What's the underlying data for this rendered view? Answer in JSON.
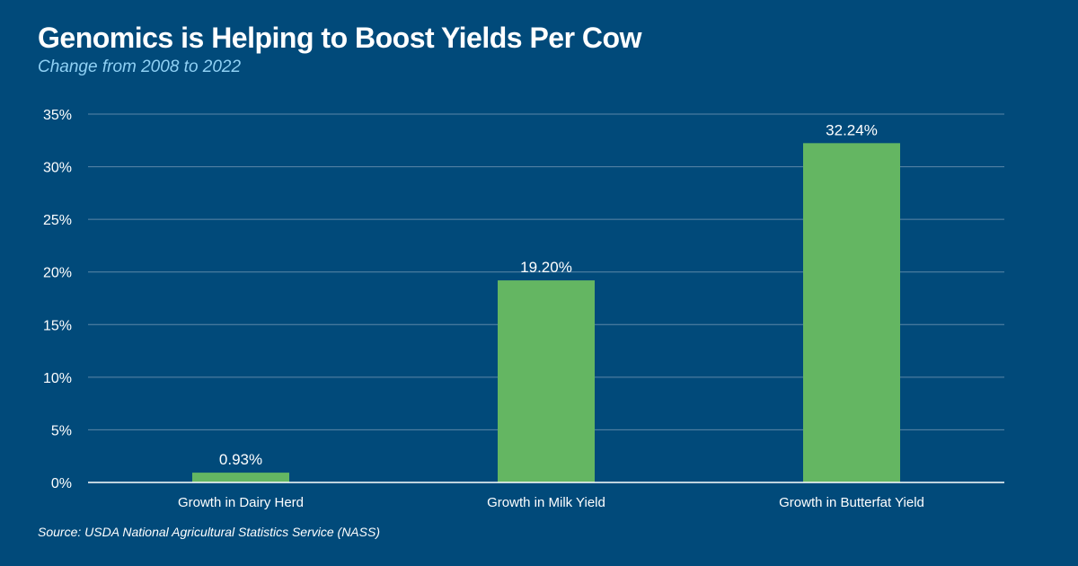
{
  "header": {
    "title": "Genomics is Helping to Boost Yields Per Cow",
    "subtitle": "Change from 2008 to 2022"
  },
  "footer": {
    "source": "Source: USDA National Agricultural Statistics Service (NASS)"
  },
  "colors": {
    "background": "#014a7a",
    "bar": "#64b662",
    "gridline": "#5c87a8",
    "subtitle": "#8fd0f4"
  },
  "chart_data": {
    "type": "bar",
    "title": "Genomics is Helping to Boost Yields Per Cow",
    "subtitle": "Change from 2008 to 2022",
    "categories": [
      "Growth in Dairy Herd",
      "Growth in Milk Yield",
      "Growth in Butterfat Yield"
    ],
    "values": [
      0.93,
      19.2,
      32.24
    ],
    "data_labels": [
      "0.93%",
      "19.20%",
      "32.24%"
    ],
    "xlabel": "",
    "ylabel": "",
    "ylim": [
      0,
      35
    ],
    "yticks": [
      0,
      5,
      10,
      15,
      20,
      25,
      30,
      35
    ],
    "ytick_labels": [
      "0%",
      "5%",
      "10%",
      "15%",
      "20%",
      "25%",
      "30%",
      "35%"
    ],
    "grid": true,
    "legend": "none"
  }
}
